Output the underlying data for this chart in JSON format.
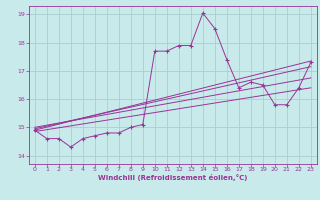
{
  "title": "",
  "xlabel": "Windchill (Refroidissement éolien,°C)",
  "ylabel": "",
  "bg_color": "#c8eaea",
  "grid_color": "#aacfcf",
  "line_color": "#993399",
  "xlim": [
    -0.5,
    23.5
  ],
  "ylim": [
    13.7,
    19.3
  ],
  "xticks": [
    0,
    1,
    2,
    3,
    4,
    5,
    6,
    7,
    8,
    9,
    10,
    11,
    12,
    13,
    14,
    15,
    16,
    17,
    18,
    19,
    20,
    21,
    22,
    23
  ],
  "yticks": [
    14,
    15,
    16,
    17,
    18,
    19
  ],
  "series": [
    [
      0,
      14.9
    ],
    [
      1,
      14.6
    ],
    [
      2,
      14.6
    ],
    [
      3,
      14.3
    ],
    [
      4,
      14.6
    ],
    [
      5,
      14.7
    ],
    [
      6,
      14.8
    ],
    [
      7,
      14.8
    ],
    [
      8,
      15.0
    ],
    [
      9,
      15.1
    ],
    [
      10,
      17.7
    ],
    [
      11,
      17.7
    ],
    [
      12,
      17.9
    ],
    [
      13,
      17.9
    ],
    [
      14,
      19.05
    ],
    [
      15,
      18.5
    ],
    [
      16,
      17.4
    ],
    [
      17,
      16.4
    ],
    [
      18,
      16.6
    ],
    [
      19,
      16.5
    ],
    [
      20,
      15.8
    ],
    [
      21,
      15.8
    ],
    [
      22,
      16.4
    ],
    [
      23,
      17.3
    ]
  ],
  "trend_lines": [
    [
      [
        0,
        14.85
      ],
      [
        23,
        16.4
      ]
    ],
    [
      [
        0,
        14.9
      ],
      [
        23,
        17.35
      ]
    ],
    [
      [
        0,
        14.95
      ],
      [
        23,
        17.15
      ]
    ],
    [
      [
        0,
        15.0
      ],
      [
        23,
        16.75
      ]
    ]
  ]
}
